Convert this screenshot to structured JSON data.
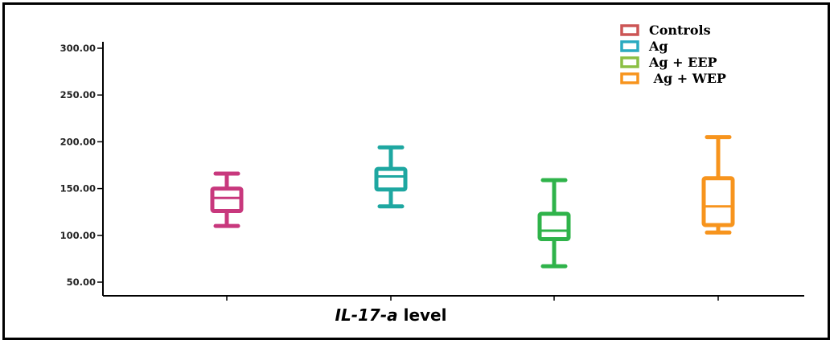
{
  "chart_data": {
    "type": "box",
    "title": "",
    "xlabel_parts": [
      {
        "text": "IL-17-",
        "italic": true
      },
      {
        "text": "a",
        "italic": true
      },
      {
        "text": " level",
        "italic": false
      }
    ],
    "ylabel": "",
    "ylim": [
      40,
      310
    ],
    "yticks": [
      50,
      100,
      150,
      200,
      250,
      300
    ],
    "ytick_labels": [
      "50.00",
      "100.00",
      "150.00",
      "200.00",
      "250.00",
      "300.00"
    ],
    "grid": false,
    "legend_position": "top-right",
    "series": [
      {
        "name": "Controls",
        "legend_label": "Controls",
        "color": "#c8387d",
        "legend_color": "#cc5555",
        "min": 110,
        "q1": 126,
        "median": 140,
        "q3": 150,
        "max": 166
      },
      {
        "name": "Ag",
        "legend_label": "Ag",
        "color": "#1ea7a1",
        "legend_color": "#2aaac0",
        "min": 131,
        "q1": 149,
        "median": 163,
        "q3": 171,
        "max": 194
      },
      {
        "name": "Ag + EEP",
        "legend_label": "Ag + EEP",
        "color": "#2fb34a",
        "legend_color": "#8bbf44",
        "min": 67,
        "q1": 96,
        "median": 105,
        "q3": 123,
        "max": 159
      },
      {
        "name": "Ag + WEP",
        "legend_label": " Ag + WEP",
        "color": "#f7941d",
        "legend_color": "#f7941d",
        "min": 103,
        "q1": 111,
        "median": 131,
        "q3": 161,
        "max": 205
      }
    ]
  }
}
